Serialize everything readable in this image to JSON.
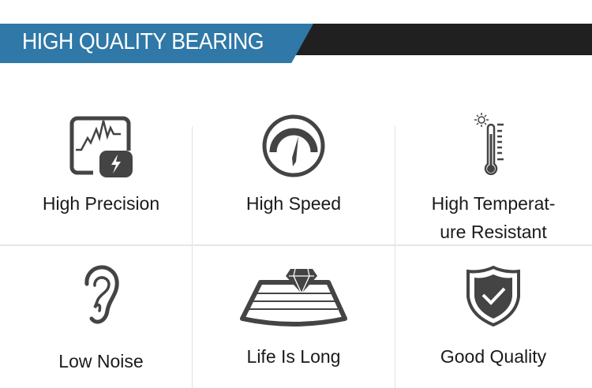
{
  "header": {
    "title": "HIGH QUALITY BEARING"
  },
  "colors": {
    "accent": "#2f78a8",
    "band": "#202020",
    "icon": "#444444"
  },
  "features": [
    {
      "label": "High Precision",
      "icon": "waveform-lightning-icon"
    },
    {
      "label": "High Speed",
      "icon": "speedometer-icon"
    },
    {
      "label_line1": "High Temperat-",
      "label_line2": "ure Resistant",
      "icon": "thermometer-icon"
    },
    {
      "label": "Low Noise",
      "icon": "ear-icon"
    },
    {
      "label": "Life Is Long",
      "icon": "diamond-road-icon"
    },
    {
      "label": "Good Quality",
      "icon": "shield-check-icon"
    }
  ]
}
